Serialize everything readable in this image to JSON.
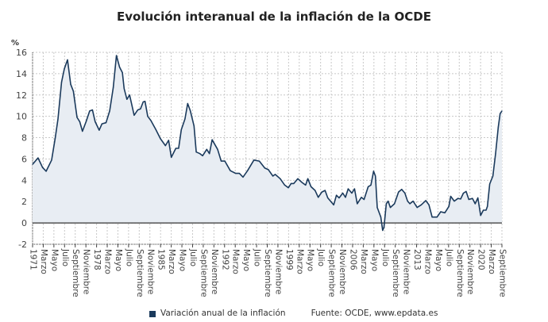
{
  "chart_data": {
    "type": "area",
    "title": "Evolución interanual de la inflación de la OCDE",
    "ylabel": "%",
    "ylim": [
      -2,
      16
    ],
    "yticks": [
      -2,
      0,
      2,
      4,
      6,
      8,
      10,
      12,
      14,
      16
    ],
    "xlim": [
      1971.0,
      2022.75
    ],
    "grid": true,
    "legend_position": "bottom",
    "colors": {
      "line": "#1b3a5c",
      "fill": "#e8edf3",
      "grid": "#c8c8c8",
      "zero_line": "#333333"
    },
    "xtick_labels": [
      "1971",
      "Marzo",
      "Mayo",
      "Julio",
      "Septiembre",
      "Noviembre",
      "1978",
      "Marzo",
      "Mayo",
      "Julio",
      "Septiembre",
      "Noviembre",
      "1985",
      "Marzo",
      "Mayo",
      "Julio",
      "Septiembre",
      "Noviembre",
      "1992",
      "Marzo",
      "Mayo",
      "Julio",
      "Septiembre",
      "Noviembre",
      "1999",
      "Marzo",
      "Mayo",
      "Julio",
      "Septiembre",
      "Noviembre",
      "2006",
      "Marzo",
      "Mayo",
      "Julio",
      "Septiembre",
      "Noviembre",
      "2013",
      "Marzo",
      "Mayo",
      "Julio",
      "Septiembre",
      "Noviembre",
      "2020",
      "Marzo",
      "Septiembre"
    ],
    "series": [
      {
        "name": "Variación anual de la inflación",
        "x": [
          1971.0,
          1971.6,
          1972.1,
          1972.5,
          1973.1,
          1973.5,
          1973.8,
          1974.2,
          1974.5,
          1974.85,
          1975.2,
          1975.5,
          1975.9,
          1976.2,
          1976.5,
          1976.9,
          1977.3,
          1977.6,
          1977.9,
          1978.35,
          1978.65,
          1979.1,
          1979.5,
          1979.9,
          1980.25,
          1980.6,
          1980.9,
          1981.1,
          1981.4,
          1981.7,
          1982.2,
          1982.6,
          1982.9,
          1983.2,
          1983.4,
          1983.7,
          1984.05,
          1984.6,
          1985.1,
          1985.65,
          1986.0,
          1986.3,
          1986.8,
          1987.1,
          1987.4,
          1987.8,
          1988.1,
          1988.4,
          1988.8,
          1989.05,
          1989.45,
          1989.75,
          1990.2,
          1990.5,
          1990.8,
          1991.4,
          1991.8,
          1992.2,
          1992.8,
          1993.4,
          1993.8,
          1994.2,
          1994.7,
          1995.4,
          1996.0,
          1996.6,
          1997.0,
          1997.5,
          1997.75,
          1998.3,
          1998.8,
          1999.2,
          1999.5,
          1999.8,
          2000.25,
          2000.7,
          2001.1,
          2001.35,
          2001.7,
          2002.15,
          2002.5,
          2002.9,
          2003.25,
          2003.55,
          2004.2,
          2004.5,
          2004.8,
          2005.2,
          2005.5,
          2005.8,
          2006.2,
          2006.5,
          2006.8,
          2007.25,
          2007.55,
          2008.0,
          2008.3,
          2008.6,
          2008.8,
          2009.0,
          2009.4,
          2009.6,
          2009.75,
          2010.0,
          2010.2,
          2010.45,
          2010.9,
          2011.35,
          2011.7,
          2012.05,
          2012.35,
          2012.6,
          2012.95,
          2013.4,
          2013.85,
          2014.35,
          2014.7,
          2015.05,
          2015.6,
          2016.0,
          2016.45,
          2016.9,
          2017.1,
          2017.5,
          2017.9,
          2018.2,
          2018.5,
          2018.8,
          2019.1,
          2019.5,
          2019.8,
          2020.1,
          2020.4,
          2020.7,
          2021.0,
          2021.15,
          2021.4,
          2021.75,
          2022.05,
          2022.35,
          2022.55,
          2022.75
        ],
        "values": [
          5.5,
          6.1,
          5.2,
          4.85,
          5.9,
          8.0,
          9.75,
          13.2,
          14.45,
          15.3,
          13.0,
          12.35,
          9.9,
          9.5,
          8.6,
          9.5,
          10.5,
          10.6,
          9.5,
          8.7,
          9.3,
          9.4,
          10.5,
          12.7,
          15.7,
          14.6,
          14.1,
          12.6,
          11.6,
          12.0,
          10.1,
          10.6,
          10.7,
          11.35,
          11.4,
          10.0,
          9.6,
          8.75,
          7.9,
          7.25,
          7.75,
          6.15,
          7.0,
          7.0,
          8.75,
          9.75,
          11.2,
          10.5,
          9.1,
          6.65,
          6.5,
          6.3,
          6.9,
          6.5,
          7.8,
          6.9,
          5.8,
          5.8,
          4.9,
          4.65,
          4.65,
          4.3,
          4.9,
          5.9,
          5.8,
          5.15,
          5.0,
          4.4,
          4.55,
          4.15,
          3.55,
          3.3,
          3.7,
          3.7,
          4.15,
          3.8,
          3.55,
          4.15,
          3.4,
          3.05,
          2.4,
          2.9,
          3.05,
          2.35,
          1.7,
          2.6,
          2.35,
          2.8,
          2.4,
          3.2,
          2.8,
          3.2,
          1.8,
          2.4,
          2.2,
          3.4,
          3.55,
          4.85,
          4.4,
          1.45,
          0.55,
          -0.7,
          -0.4,
          1.8,
          2.05,
          1.45,
          1.8,
          2.9,
          3.15,
          2.8,
          2.05,
          1.8,
          2.05,
          1.45,
          1.7,
          2.1,
          1.7,
          0.55,
          0.55,
          1.05,
          0.95,
          1.55,
          2.5,
          2.05,
          2.3,
          2.25,
          2.8,
          2.95,
          2.2,
          2.3,
          1.8,
          2.35,
          0.7,
          1.2,
          1.2,
          1.55,
          3.65,
          4.4,
          6.5,
          9.0,
          10.25,
          10.5
        ]
      }
    ]
  },
  "legend": {
    "label": "Variación anual de la inflación"
  },
  "source": "Fuente: OCDE, www.epdata.es"
}
